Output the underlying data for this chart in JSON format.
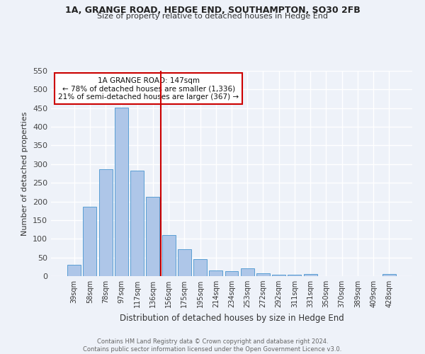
{
  "title1": "1A, GRANGE ROAD, HEDGE END, SOUTHAMPTON, SO30 2FB",
  "title2": "Size of property relative to detached houses in Hedge End",
  "xlabel": "Distribution of detached houses by size in Hedge End",
  "ylabel": "Number of detached properties",
  "footer1": "Contains HM Land Registry data © Crown copyright and database right 2024.",
  "footer2": "Contains public sector information licensed under the Open Government Licence v3.0.",
  "bar_labels": [
    "39sqm",
    "58sqm",
    "78sqm",
    "97sqm",
    "117sqm",
    "136sqm",
    "156sqm",
    "175sqm",
    "195sqm",
    "214sqm",
    "234sqm",
    "253sqm",
    "272sqm",
    "292sqm",
    "311sqm",
    "331sqm",
    "350sqm",
    "370sqm",
    "389sqm",
    "409sqm",
    "428sqm"
  ],
  "bar_values": [
    30,
    185,
    287,
    452,
    282,
    213,
    110,
    73,
    46,
    15,
    13,
    21,
    8,
    4,
    4,
    6,
    0,
    0,
    0,
    0,
    5
  ],
  "bar_color": "#aec6e8",
  "bar_edge_color": "#5a9fd4",
  "vline_x": 5.5,
  "vline_color": "#cc0000",
  "annotation_text": "1A GRANGE ROAD: 147sqm\n← 78% of detached houses are smaller (1,336)\n21% of semi-detached houses are larger (367) →",
  "annotation_box_color": "#ffffff",
  "annotation_box_edge": "#cc0000",
  "ylim": [
    0,
    550
  ],
  "yticks": [
    0,
    50,
    100,
    150,
    200,
    250,
    300,
    350,
    400,
    450,
    500,
    550
  ],
  "bg_color": "#eef2f9",
  "plot_bg_color": "#eef2f9",
  "grid_color": "#ffffff"
}
